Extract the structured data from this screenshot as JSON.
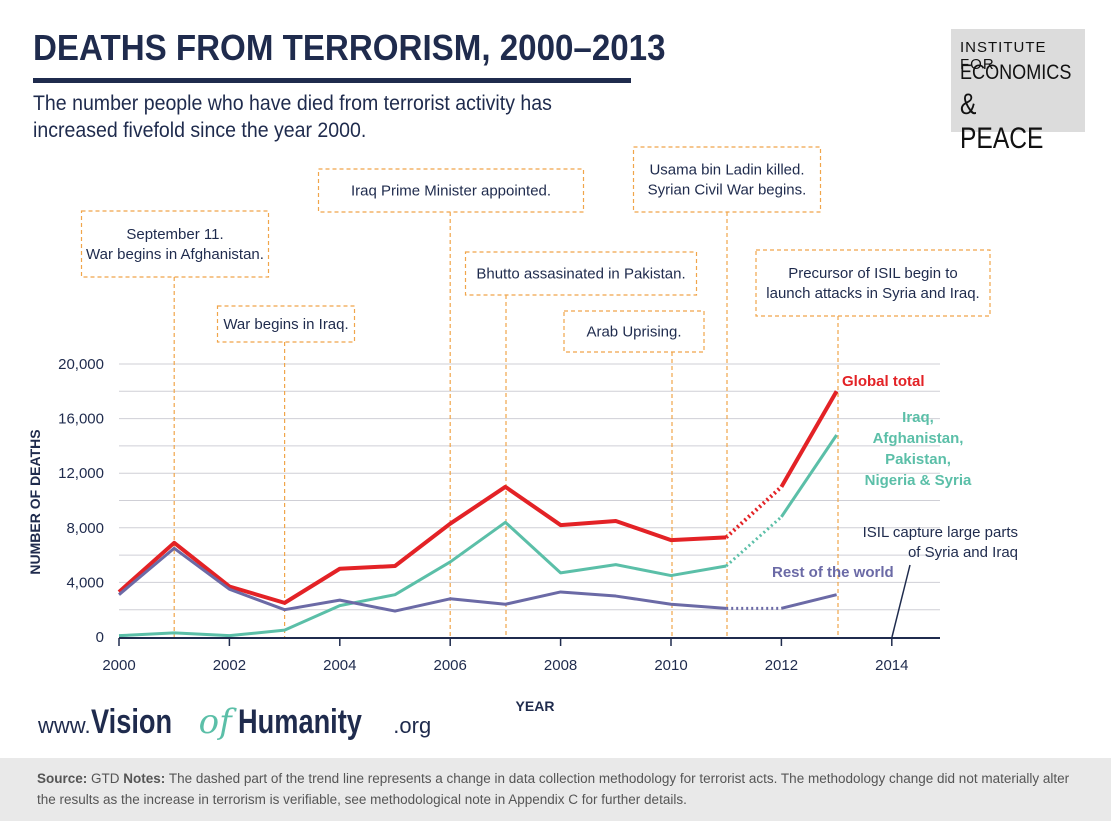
{
  "header": {
    "title": "DEATHS FROM TERRORISM, 2000–2013",
    "subtitle": "The number people who have died from terrorist activity has increased fivefold since the year 2000."
  },
  "logo": {
    "line1": "INSTITUTE FOR",
    "line2": "ECONOMICS",
    "line3": "& PEACE"
  },
  "brand": {
    "www": "www.",
    "vision": "Vision",
    "of": "of",
    "humanity": "Humanity",
    "org": ".org"
  },
  "footer": {
    "source_label": "Source:",
    "source_value": "GTD",
    "notes_label": "Notes:",
    "notes_value": "The dashed part of the trend line represents a change in data collection methodology for terrorist acts. The methodology change did not materially alter the results as the increase in terrorism is verifiable, see methodological note in Appendix C for further details."
  },
  "colors": {
    "navy": "#1f2b4d",
    "global": "#e32226",
    "iraq_group": "#5bbfa8",
    "rest": "#6b6aa6",
    "annot": "#f0a54a",
    "grid": "#cfcfd6"
  },
  "chart_data": {
    "type": "line",
    "xlabel": "YEAR",
    "ylabel": "NUMBER OF DEATHS",
    "xlim": [
      2000,
      2015
    ],
    "ylim": [
      0,
      20000
    ],
    "x_ticks": [
      2000,
      2002,
      2004,
      2006,
      2008,
      2010,
      2012,
      2014
    ],
    "y_ticks": [
      0,
      4000,
      8000,
      12000,
      16000,
      20000
    ],
    "x_tick_labels": [
      "2000",
      "2002",
      "2004",
      "2006",
      "2008",
      "2010",
      "2012",
      "2014"
    ],
    "y_tick_labels": [
      "0",
      "4,000",
      "8,000",
      "12,000",
      "16,000",
      "20,000"
    ],
    "methodology_change_between": [
      2011,
      2012
    ],
    "series": [
      {
        "name": "Global total",
        "color": "#e32226",
        "x": [
          2000,
          2001,
          2002,
          2003,
          2004,
          2005,
          2006,
          2007,
          2008,
          2009,
          2010,
          2011,
          2012,
          2013
        ],
        "values": [
          3300,
          6900,
          3700,
          2500,
          5000,
          5200,
          8300,
          11000,
          8200,
          8500,
          7100,
          7300,
          11000,
          18000
        ]
      },
      {
        "name": "Iraq, Afghanistan, Pakistan, Nigeria & Syria",
        "label_lines": [
          "Iraq,",
          "Afghanistan,",
          "Pakistan,",
          "Nigeria & Syria"
        ],
        "color": "#5bbfa8",
        "x": [
          2000,
          2001,
          2002,
          2003,
          2004,
          2005,
          2006,
          2007,
          2008,
          2009,
          2010,
          2011,
          2012,
          2013
        ],
        "values": [
          100,
          300,
          100,
          500,
          2300,
          3100,
          5500,
          8400,
          4700,
          5300,
          4500,
          5200,
          8800,
          14800
        ]
      },
      {
        "name": "Rest of the world",
        "color": "#6b6aa6",
        "x": [
          2000,
          2001,
          2002,
          2003,
          2004,
          2005,
          2006,
          2007,
          2008,
          2009,
          2010,
          2011,
          2012,
          2013
        ],
        "values": [
          3100,
          6500,
          3500,
          2000,
          2700,
          1900,
          2800,
          2400,
          3300,
          3000,
          2400,
          2100,
          2100,
          3100
        ]
      }
    ],
    "annotations": [
      {
        "year": 2001,
        "lines": [
          "September 11.",
          "War begins in Afghanistan."
        ]
      },
      {
        "year": 2003,
        "lines": [
          "War begins in Iraq."
        ]
      },
      {
        "year": 2006,
        "lines": [
          "Iraq Prime Minister appointed."
        ]
      },
      {
        "year": 2007,
        "lines": [
          "Bhutto assasinated in Pakistan."
        ]
      },
      {
        "year": 2010,
        "lines": [
          "Arab Uprising."
        ]
      },
      {
        "year": 2011,
        "lines": [
          "Usama bin Ladin killed.",
          "Syrian Civil War begins."
        ]
      },
      {
        "year": 2013,
        "lines": [
          "Precursor of ISIL begin to",
          "launch attacks in Syria and Iraq."
        ]
      },
      {
        "year": 2014,
        "lines": [
          "ISIL capture large parts",
          "of Syria and Iraq"
        ]
      }
    ]
  }
}
